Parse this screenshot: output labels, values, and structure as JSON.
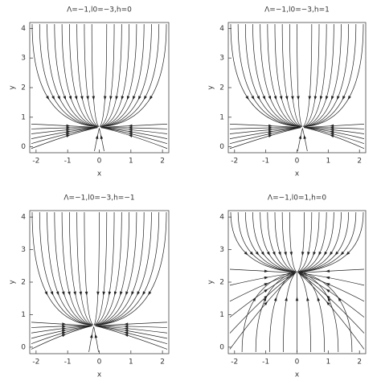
{
  "chart_data": [
    {
      "type": "stream",
      "title": "Λ=−1,l0=−3,h=0",
      "xlabel": "x",
      "ylabel": "y",
      "xlim": [
        -2.2,
        2.2
      ],
      "ylim": [
        -0.2,
        4.2
      ],
      "xticks": [
        -2,
        -1,
        0,
        1,
        2
      ],
      "yticks": [
        0,
        1,
        2,
        3,
        4
      ]
    },
    {
      "type": "stream",
      "title": "Λ=−1,l0=−3,h=1",
      "xlabel": "x",
      "ylabel": "y",
      "xlim": [
        -2.2,
        2.2
      ],
      "ylim": [
        -0.2,
        4.2
      ],
      "xticks": [
        -2,
        -1,
        0,
        1,
        2
      ],
      "yticks": [
        0,
        1,
        2,
        3,
        4
      ]
    },
    {
      "type": "stream",
      "title": "Λ=−1,l0=−3,h=−1",
      "xlabel": "x",
      "ylabel": "y",
      "xlim": [
        -2.2,
        2.2
      ],
      "ylim": [
        -0.2,
        4.2
      ],
      "xticks": [
        -2,
        -1,
        0,
        1,
        2
      ],
      "yticks": [
        0,
        1,
        2,
        3,
        4
      ]
    },
    {
      "type": "stream",
      "title": "Λ=−1,l0=1,h=0",
      "xlabel": "x",
      "ylabel": "y",
      "xlim": [
        -2.2,
        2.2
      ],
      "ylim": [
        -0.2,
        4.2
      ],
      "xticks": [
        -2,
        -1,
        0,
        1,
        2
      ],
      "yticks": [
        0,
        1,
        2,
        3,
        4
      ]
    }
  ]
}
